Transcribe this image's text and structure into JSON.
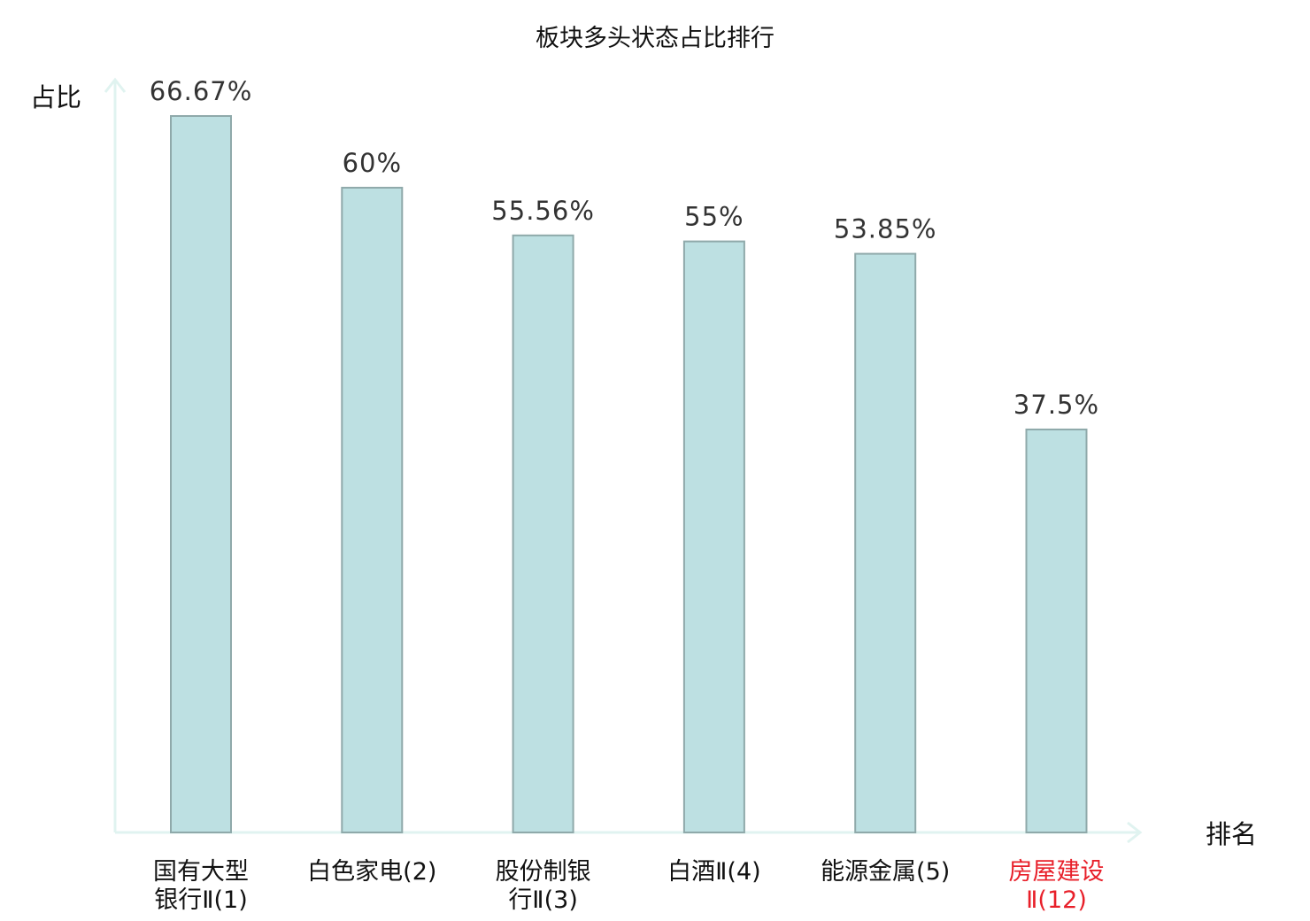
{
  "chart_data": {
    "type": "bar",
    "title": "板块多头状态占比排行",
    "xlabel": "排名",
    "ylabel": "占比",
    "ylim": [
      0,
      66.67
    ],
    "unit": "%",
    "grid": false,
    "legend": "none",
    "categories": [
      [
        "国有大型",
        "银行Ⅱ(1)"
      ],
      [
        "白色家电(2)"
      ],
      [
        "股份制银",
        "行Ⅱ(3)"
      ],
      [
        "白酒Ⅱ(4)"
      ],
      [
        "能源金属(5)"
      ],
      [
        "房屋建设",
        "Ⅱ(12)"
      ]
    ],
    "values": [
      66.67,
      60,
      55.56,
      55,
      53.85,
      37.5
    ],
    "value_labels": [
      "66.67%",
      "60%",
      "55.56%",
      "55%",
      "53.85%",
      "37.5%"
    ],
    "highlight_index": 5,
    "colors": {
      "bar_fill": "#bde0e2",
      "bar_stroke": "#8fa9aa",
      "axis": "#e0f3f0",
      "highlight_text": "#e8202a"
    }
  }
}
